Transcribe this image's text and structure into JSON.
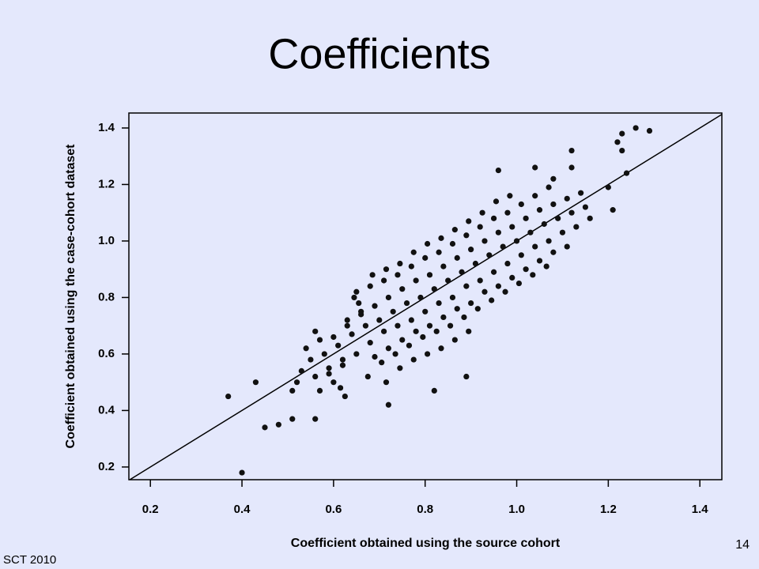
{
  "chart_data": {
    "type": "scatter",
    "title": "Coefficients",
    "x_label": "Coefficient obtained using the source cohort",
    "y_label": "Coefficient obtained using the case-cohort dataset",
    "footer": "SCT 2010",
    "page_number": "14",
    "color": "#111111",
    "xlim": [
      0.153,
      1.448
    ],
    "ylim": [
      0.155,
      1.453
    ],
    "xticks": [
      0.2,
      0.4,
      0.6,
      0.8,
      {
        "value": 1,
        "label": "1.0"
      },
      1.2,
      1.4
    ],
    "yticks": [
      0.2,
      0.4,
      0.6,
      0.8,
      {
        "value": 1,
        "label": "1.0"
      },
      1.2,
      1.4
    ],
    "x": [
      0.52,
      0.53,
      0.51,
      0.55,
      0.56,
      0.54,
      0.57,
      0.58,
      0.59,
      0.57,
      0.6,
      0.56,
      0.61,
      0.62,
      0.6,
      0.63,
      0.59,
      0.615,
      0.64,
      0.65,
      0.63,
      0.66,
      0.62,
      0.645,
      0.625,
      0.67,
      0.68,
      0.66,
      0.69,
      0.65,
      0.675,
      0.655,
      0.7,
      0.71,
      0.69,
      0.72,
      0.68,
      0.705,
      0.685,
      0.715,
      0.73,
      0.74,
      0.72,
      0.75,
      0.71,
      0.735,
      0.715,
      0.745,
      0.76,
      0.77,
      0.75,
      0.78,
      0.74,
      0.765,
      0.745,
      0.775,
      0.79,
      0.8,
      0.78,
      0.81,
      0.77,
      0.795,
      0.775,
      0.805,
      0.82,
      0.83,
      0.81,
      0.84,
      0.8,
      0.825,
      0.805,
      0.835,
      0.85,
      0.86,
      0.84,
      0.87,
      0.83,
      0.855,
      0.835,
      0.865,
      0.88,
      0.89,
      0.87,
      0.9,
      0.86,
      0.885,
      0.865,
      0.895,
      0.91,
      0.92,
      0.9,
      0.93,
      0.89,
      0.915,
      0.895,
      0.94,
      0.95,
      0.93,
      0.96,
      0.92,
      0.945,
      0.925,
      0.97,
      0.98,
      0.96,
      0.99,
      0.95,
      0.975,
      0.955,
      1.0,
      1.01,
      0.99,
      1.02,
      0.98,
      1.005,
      0.985,
      1.03,
      1.04,
      1.02,
      1.05,
      1.01,
      1.035,
      1.06,
      1.07,
      1.05,
      1.08,
      1.04,
      1.065,
      1.09,
      1.1,
      1.08,
      1.11,
      1.07,
      1.12,
      1.13,
      1.11,
      1.15,
      1.16,
      1.14,
      0.4,
      0.37,
      0.43,
      0.45,
      0.48,
      0.51,
      0.56,
      1.29,
      1.26,
      1.23,
      1.22,
      1.23,
      1.12,
      1.12,
      1.2,
      1.21,
      1.24,
      0.82,
      0.72,
      0.89,
      0.96,
      1.04,
      1.08
    ],
    "y": [
      0.5,
      0.54,
      0.47,
      0.58,
      0.52,
      0.62,
      0.47,
      0.6,
      0.55,
      0.65,
      0.5,
      0.68,
      0.63,
      0.58,
      0.66,
      0.72,
      0.53,
      0.48,
      0.67,
      0.6,
      0.7,
      0.74,
      0.56,
      0.8,
      0.45,
      0.7,
      0.64,
      0.75,
      0.59,
      0.82,
      0.52,
      0.78,
      0.72,
      0.68,
      0.77,
      0.62,
      0.84,
      0.57,
      0.88,
      0.5,
      0.75,
      0.7,
      0.8,
      0.65,
      0.86,
      0.6,
      0.9,
      0.55,
      0.78,
      0.72,
      0.83,
      0.68,
      0.88,
      0.63,
      0.92,
      0.58,
      0.8,
      0.75,
      0.86,
      0.7,
      0.91,
      0.66,
      0.96,
      0.6,
      0.83,
      0.78,
      0.88,
      0.73,
      0.94,
      0.68,
      0.99,
      0.62,
      0.86,
      0.8,
      0.91,
      0.76,
      0.96,
      0.7,
      1.01,
      0.65,
      0.89,
      0.84,
      0.94,
      0.78,
      0.99,
      0.73,
      1.04,
      0.68,
      0.92,
      0.86,
      0.97,
      0.82,
      1.02,
      0.76,
      1.07,
      0.95,
      0.89,
      1.0,
      0.84,
      1.05,
      0.79,
      1.1,
      0.98,
      0.92,
      1.03,
      0.87,
      1.08,
      0.82,
      1.14,
      1.0,
      0.95,
      1.05,
      0.9,
      1.1,
      0.85,
      1.16,
      1.03,
      0.98,
      1.08,
      0.93,
      1.13,
      0.88,
      1.06,
      1.0,
      1.11,
      0.96,
      1.16,
      0.91,
      1.08,
      1.03,
      1.13,
      0.98,
      1.19,
      1.1,
      1.05,
      1.15,
      1.12,
      1.08,
      1.17,
      0.18,
      0.45,
      0.5,
      0.34,
      0.35,
      0.37,
      0.37,
      1.39,
      1.4,
      1.38,
      1.35,
      1.32,
      1.32,
      1.26,
      1.19,
      1.11,
      1.24,
      0.47,
      0.42,
      0.52,
      1.25,
      1.26,
      1.22
    ]
  }
}
